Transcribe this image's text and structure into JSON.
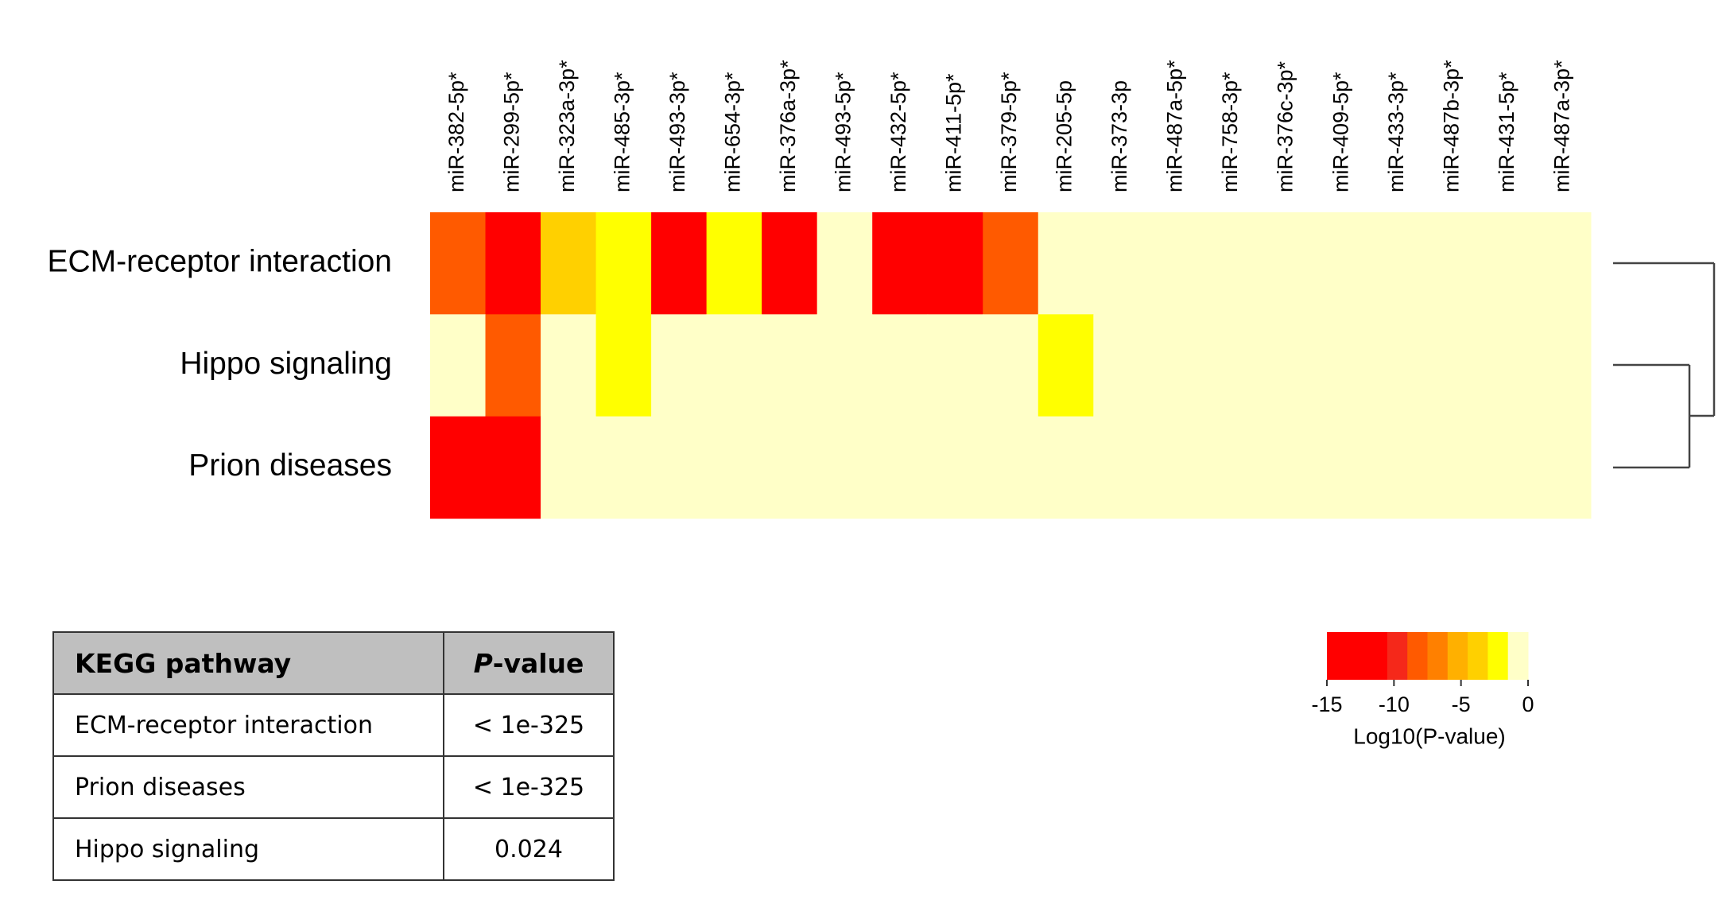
{
  "chart_data": {
    "type": "heatmap",
    "categories": [
      "miR-382-5p*",
      "miR-299-5p*",
      "miR-323a-3p*",
      "miR-485-3p*",
      "miR-493-3p*",
      "miR-654-3p*",
      "miR-376a-3p*",
      "miR-493-5p*",
      "miR-432-5p*",
      "miR-411-5p*",
      "miR-379-5p*",
      "miR-205-5p",
      "miR-373-3p",
      "miR-487a-5p*",
      "miR-758-3p*",
      "miR-376c-3p*",
      "miR-409-5p*",
      "miR-433-3p*",
      "miR-487b-3p*",
      "miR-431-5p*",
      "miR-487a-3p*"
    ],
    "rows": [
      "ECM-receptor interaction",
      "Hippo signaling",
      "Prion diseases"
    ],
    "values": [
      [
        -8,
        -13,
        -4,
        -2,
        -11,
        -2.5,
        -13,
        0,
        -14,
        -14,
        -8,
        0,
        0,
        0,
        0,
        0,
        0,
        0,
        0,
        0,
        0
      ],
      [
        0,
        -8,
        0,
        -2,
        0,
        0,
        0,
        0,
        0,
        0,
        0,
        -2,
        0,
        0,
        0,
        0,
        0,
        0,
        0,
        0,
        0
      ],
      [
        -15,
        -15,
        0,
        0,
        0,
        0,
        0,
        0,
        0,
        0,
        0,
        0,
        0,
        0,
        0,
        0,
        0,
        0,
        0,
        0,
        0
      ]
    ],
    "colorscale": [
      "#ff0000",
      "#ff0000",
      "#ff0000",
      "#f5281a",
      "#ff5a00",
      "#ff8000",
      "#ffb000",
      "#ffd000",
      "#ffff00",
      "#ffffc8"
    ],
    "zlim": [
      -15,
      0
    ],
    "zticks": [
      -15,
      -10,
      -5,
      0
    ],
    "colorbar_label": "Log10(P-value)"
  },
  "table": {
    "header": [
      "KEGG pathway",
      "P-value"
    ],
    "rows": [
      [
        "ECM-receptor interaction",
        "< 1e-325"
      ],
      [
        "Prion diseases",
        "< 1e-325"
      ],
      [
        "Hippo signaling",
        "0.024"
      ]
    ]
  }
}
